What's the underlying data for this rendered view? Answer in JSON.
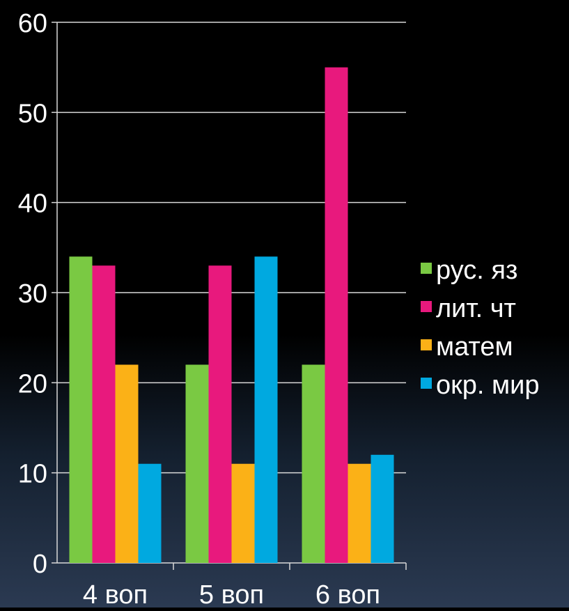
{
  "chart_data": {
    "type": "bar",
    "categories": [
      "4 воп",
      "5 воп",
      "6 воп"
    ],
    "series": [
      {
        "name": "рус. яз",
        "color": "#7ac943",
        "values": [
          34,
          22,
          22
        ]
      },
      {
        "name": "лит. чт",
        "color": "#e8197d",
        "values": [
          33,
          33,
          55
        ]
      },
      {
        "name": "матем",
        "color": "#fbb117",
        "values": [
          22,
          11,
          11
        ]
      },
      {
        "name": "окр. мир",
        "color": "#00a9e0",
        "values": [
          11,
          34,
          12
        ]
      }
    ],
    "yticks": [
      "0",
      "10",
      "20",
      "30",
      "40",
      "50",
      "60"
    ],
    "ylim": [
      0,
      60
    ],
    "grid": true,
    "legend_position": "right",
    "title": "",
    "xlabel": "",
    "ylabel": ""
  }
}
